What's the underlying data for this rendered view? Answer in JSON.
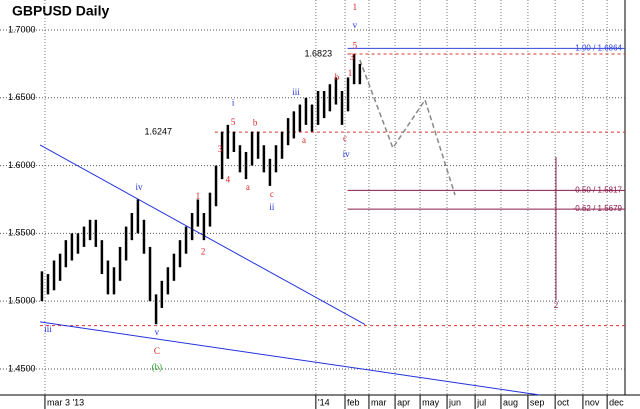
{
  "chart_data": {
    "type": "range-bar",
    "title": "GBPUSD Daily",
    "xlim": [
      -0.18,
      21.09
    ],
    "ylim": [
      1.4308,
      1.7221
    ],
    "xticks": [
      {
        "value": 0,
        "label": "mar 3 '13"
      },
      {
        "value": 9.85,
        "label": "'14"
      },
      {
        "value": 10.91,
        "label": "feb"
      },
      {
        "value": 11.78,
        "label": "mar"
      },
      {
        "value": 12.73,
        "label": "apr"
      },
      {
        "value": 13.64,
        "label": "may"
      },
      {
        "value": 14.62,
        "label": "jun"
      },
      {
        "value": 15.64,
        "label": "jul"
      },
      {
        "value": 16.58,
        "label": "aug"
      },
      {
        "value": 17.56,
        "label": "sep"
      },
      {
        "value": 18.55,
        "label": "oct"
      },
      {
        "value": 19.56,
        "label": "nov"
      },
      {
        "value": 20.44,
        "label": "dec"
      }
    ],
    "yticks": [
      {
        "value": 1.45,
        "label": "1.4500"
      },
      {
        "value": 1.5,
        "label": "1.5000"
      },
      {
        "value": 1.55,
        "label": "1.5500"
      },
      {
        "value": 1.6,
        "label": "1.6000"
      },
      {
        "value": 1.65,
        "label": "1.6500"
      },
      {
        "value": 1.7,
        "label": "1.7000"
      }
    ],
    "grid": true,
    "color": "#000000",
    "x": [
      -0.11,
      0.11,
      0.33,
      0.55,
      0.76,
      0.98,
      1.2,
      1.42,
      1.64,
      1.85,
      2.07,
      2.29,
      2.51,
      2.73,
      2.95,
      3.16,
      3.38,
      3.6,
      3.82,
      4.04,
      4.25,
      4.47,
      4.69,
      4.91,
      5.13,
      5.35,
      5.56,
      5.78,
      6.0,
      6.22,
      6.44,
      6.65,
      6.87,
      7.09,
      7.31,
      7.53,
      7.75,
      7.96,
      8.18,
      8.4,
      8.62,
      8.84,
      9.05,
      9.27,
      9.49,
      9.71,
      9.93,
      10.15,
      10.36,
      10.58,
      10.8,
      11.02,
      11.24,
      11.45
    ],
    "low": [
      1.5,
      1.505,
      1.508,
      1.515,
      1.525,
      1.53,
      1.535,
      1.54,
      1.545,
      1.54,
      1.52,
      1.505,
      1.505,
      1.515,
      1.53,
      1.545,
      1.55,
      1.535,
      1.5,
      1.483,
      1.495,
      1.505,
      1.515,
      1.525,
      1.535,
      1.545,
      1.555,
      1.545,
      1.555,
      1.57,
      1.59,
      1.605,
      1.61,
      1.595,
      1.59,
      1.6,
      1.605,
      1.595,
      1.585,
      1.595,
      1.605,
      1.615,
      1.62,
      1.625,
      1.63,
      1.625,
      1.63,
      1.635,
      1.64,
      1.645,
      1.63,
      1.64,
      1.66,
      1.66
    ],
    "high": [
      1.522,
      1.52,
      1.53,
      1.535,
      1.545,
      1.55,
      1.55,
      1.555,
      1.56,
      1.56,
      1.545,
      1.53,
      1.525,
      1.54,
      1.555,
      1.565,
      1.575,
      1.56,
      1.54,
      1.505,
      1.515,
      1.525,
      1.535,
      1.545,
      1.555,
      1.565,
      1.575,
      1.565,
      1.58,
      1.6,
      1.625,
      1.63,
      1.625,
      1.615,
      1.61,
      1.625,
      1.625,
      1.615,
      1.605,
      1.615,
      1.625,
      1.635,
      1.64,
      1.645,
      1.65,
      1.645,
      1.655,
      1.655,
      1.66,
      1.665,
      1.655,
      1.665,
      1.682,
      1.675
    ],
    "levels": [
      {
        "value": 1.6864,
        "from": 11.0,
        "color": "#3344dd",
        "dash": false,
        "label": "1.00 / 1.6864"
      },
      {
        "value": 1.6823,
        "from": 11.0,
        "color": "#dd3333",
        "dash": true
      },
      {
        "value": 1.6247,
        "from": 6.18,
        "color": "#dd3333",
        "dash": true
      },
      {
        "value": 1.482,
        "from": -0.18,
        "color": "#dd3333",
        "dash": true
      },
      {
        "value": 1.5817,
        "from": 11.0,
        "color": "#8b1a4a",
        "dash": false,
        "label": "-0.50 / 1.5817"
      },
      {
        "value": 1.5679,
        "from": 11.0,
        "color": "#8b1a4a",
        "dash": false,
        "label": "-0.62 / 1.5679"
      }
    ],
    "lines": [
      {
        "x": [
          -0.18,
          11.64
        ],
        "y": [
          1.6152,
          1.4827
        ],
        "color": "#2233dd",
        "dash": false
      },
      {
        "x": [
          -0.18,
          18.0
        ],
        "y": [
          1.4847,
          1.4308
        ],
        "color": "#2233dd",
        "dash": false
      },
      {
        "x": [
          11.45,
          12.65,
          13.82,
          14.91
        ],
        "y": [
          1.6779,
          1.613,
          1.6484,
          1.5783
        ],
        "color": "#888888",
        "dash": true
      },
      {
        "x": [
          18.58,
          18.58
        ],
        "y": [
          1.6063,
          1.5009
        ],
        "color": "#8b1a4a",
        "dash": false
      }
    ],
    "annotations": [
      {
        "text": "1",
        "x": 5.56,
        "y": 1.577,
        "color": "#dd2222"
      },
      {
        "text": "2",
        "x": 5.75,
        "y": 1.536,
        "color": "#dd2222"
      },
      {
        "text": "3",
        "x": 6.36,
        "y": 1.6115,
        "color": "#dd2222"
      },
      {
        "text": "4",
        "x": 6.65,
        "y": 1.589,
        "color": "#dd2222"
      },
      {
        "text": "5",
        "x": 6.84,
        "y": 1.6314,
        "color": "#dd2222"
      },
      {
        "text": "i",
        "x": 6.84,
        "y": 1.646,
        "color": "#2233dd"
      },
      {
        "text": "a",
        "x": 7.38,
        "y": 1.5835,
        "color": "#dd2222"
      },
      {
        "text": "b",
        "x": 7.64,
        "y": 1.631,
        "color": "#dd2222"
      },
      {
        "text": "c",
        "x": 8.25,
        "y": 1.5783,
        "color": "#dd2222"
      },
      {
        "text": "ii",
        "x": 8.25,
        "y": 1.5687,
        "color": "#2233dd"
      },
      {
        "text": "iii",
        "x": 9.13,
        "y": 1.6535,
        "color": "#2233dd"
      },
      {
        "text": "a",
        "x": 9.42,
        "y": 1.618,
        "color": "#dd2222"
      },
      {
        "text": "b",
        "x": 10.62,
        "y": 1.6646,
        "color": "#dd2222"
      },
      {
        "text": "c",
        "x": 10.91,
        "y": 1.6196,
        "color": "#dd2222"
      },
      {
        "text": "iv",
        "x": 10.95,
        "y": 1.6078,
        "color": "#2233dd"
      },
      {
        "text": "iv",
        "x": 3.42,
        "y": 1.5835,
        "color": "#2233dd"
      },
      {
        "text": "v",
        "x": 4.07,
        "y": 1.4766,
        "color": "#2233dd"
      },
      {
        "text": "C",
        "x": 4.07,
        "y": 1.4625,
        "color": "#dd2222"
      },
      {
        "text": "(b)",
        "x": 4.07,
        "y": 1.4507,
        "color": "#22aa22"
      },
      {
        "text": "iii",
        "x": 0.11,
        "y": 1.4788,
        "color": "#2233dd"
      },
      {
        "text": "1",
        "x": 11.27,
        "y": 1.7162,
        "color": "#dd2222"
      },
      {
        "text": "v",
        "x": 11.27,
        "y": 1.703,
        "color": "#2233dd"
      },
      {
        "text": "5",
        "x": 11.27,
        "y": 1.688,
        "color": "#dd2222"
      },
      {
        "text": "3",
        "x": 11.16,
        "y": 1.6795,
        "color": "#dd2222"
      },
      {
        "text": "1",
        "x": 11.09,
        "y": 1.6676,
        "color": "#dd2222"
      },
      {
        "text": "2",
        "x": 18.58,
        "y": 1.4965,
        "color": "#8b1a4a"
      },
      {
        "text": "1.6823",
        "x": 10.44,
        "y": 1.6823,
        "color": "#000000"
      },
      {
        "text": "1.6247",
        "x": 4.62,
        "y": 1.6247,
        "color": "#000000"
      }
    ]
  }
}
